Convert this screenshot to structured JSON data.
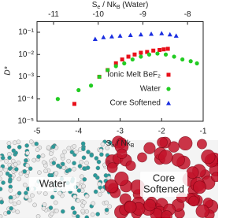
{
  "chart_data": {
    "type": "scatter",
    "xlabel": [
      "S",
      "e",
      " / Nk",
      "B"
    ],
    "x2label": [
      "S",
      "e",
      " / Nk",
      "B",
      " (Water)"
    ],
    "ylabel": "D*",
    "xlim": [
      -5,
      -1
    ],
    "xticks": [
      -5,
      -4,
      -3,
      -2,
      -1
    ],
    "x2lim": [
      -11.37,
      -7.65
    ],
    "x2ticks": [
      -11,
      -10,
      -9,
      -8
    ],
    "ylim": [
      1e-05,
      0.3
    ],
    "log_y": true,
    "yticks": [
      {
        "value": 0.1,
        "label": "10⁻¹"
      },
      {
        "value": 0.01,
        "label": "10⁻²"
      },
      {
        "value": 0.001,
        "label": "10⁻³"
      },
      {
        "value": 0.0001,
        "label": "10⁻⁴"
      },
      {
        "value": 1e-05,
        "label": "10⁻⁵"
      }
    ],
    "legend": "lower right",
    "series": [
      {
        "name": "Ionic Melt BeF₂",
        "color": "#e8101a",
        "marker": "square",
        "x": [
          -4.1,
          -3.5,
          -3.3,
          -3.1,
          -2.95,
          -2.8,
          -2.65,
          -2.5,
          -2.35,
          -2.2,
          -2.05,
          -1.95,
          -1.85
        ],
        "values": [
          6e-05,
          0.001,
          0.002,
          0.004,
          0.006,
          0.008,
          0.01,
          0.012,
          0.013,
          0.015,
          0.016,
          0.017,
          0.018
        ]
      },
      {
        "name": "Water",
        "color": "#22cc22",
        "marker": "circle",
        "x": [
          -4.5,
          -4.0,
          -3.7,
          -3.5,
          -3.3,
          -3.1,
          -2.9,
          -2.7,
          -2.5,
          -2.3,
          -2.1,
          -1.9,
          -1.7,
          -1.5,
          -1.3,
          -1.15
        ],
        "values": [
          0.0001,
          0.00025,
          0.0004,
          0.001,
          0.002,
          0.003,
          0.004,
          0.006,
          0.008,
          0.01,
          0.011,
          0.01,
          0.008,
          0.006,
          0.005,
          0.004
        ]
      },
      {
        "name": "Core Softened",
        "color": "#1a2ee0",
        "marker": "triangle",
        "x": [
          -3.6,
          -3.4,
          -3.2,
          -3.0,
          -2.75,
          -2.5,
          -2.25,
          -2.0,
          -1.8,
          -1.65
        ],
        "values": [
          0.05,
          0.06,
          0.065,
          0.07,
          0.075,
          0.08,
          0.085,
          0.09,
          0.08,
          0.07
        ]
      }
    ]
  },
  "panels": [
    {
      "label": [
        "Water"
      ]
    },
    {
      "label": [
        "Core",
        "Softened"
      ]
    }
  ]
}
